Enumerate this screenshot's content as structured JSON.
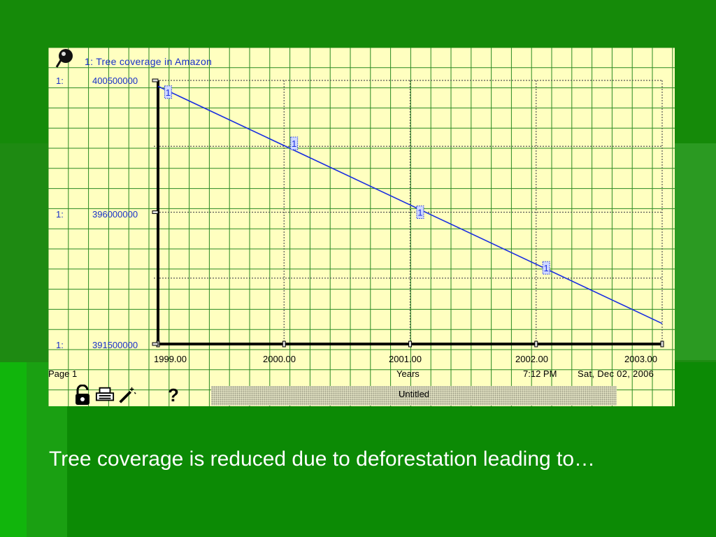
{
  "chart_data": {
    "type": "line",
    "title": "",
    "series": [
      {
        "index": "1",
        "name": "Tree coverage in Amazon",
        "label": "1: Tree coverage in Amazon",
        "color": "#1a2ee0",
        "x": [
          1999.0,
          2003.0
        ],
        "values": [
          400300000,
          392200000
        ],
        "markers": [
          {
            "x": 1999.08,
            "y": 400100000,
            "label": "1"
          },
          {
            "x": 2000.08,
            "y": 398350000,
            "label": "1"
          },
          {
            "x": 2001.08,
            "y": 396000000,
            "label": "1"
          },
          {
            "x": 2002.08,
            "y": 394100000,
            "label": "1"
          }
        ]
      }
    ],
    "xlabel": "Years",
    "ylabel": "",
    "xlim": [
      1999.0,
      2003.0
    ],
    "ylim": [
      391500000,
      400500000
    ],
    "xticks": [
      "1999.00",
      "2000.00",
      "2001.00",
      "2002.00",
      "2003.00"
    ],
    "xtick_values": [
      1999.0,
      2000.0,
      2001.0,
      2002.0,
      2003.0
    ],
    "yticks": [
      {
        "index": "1:",
        "label": "400500000",
        "value": 400500000
      },
      {
        "index": "1:",
        "label": "396000000",
        "value": 396000000
      },
      {
        "index": "1:",
        "label": "391500000",
        "value": 391500000
      }
    ],
    "grid": true,
    "legend": "top-left"
  },
  "footer": {
    "page": "Page 1",
    "time": "7:12 PM",
    "date": "Sat, Dec 02, 2006",
    "status": "Untitled"
  },
  "toolbar": {
    "icons": [
      "lock-icon",
      "printer-icon",
      "magic-wand-icon",
      "help-icon"
    ],
    "help_label": "?"
  },
  "caption": "Tree coverage is reduced due to deforestation leading to…",
  "colors": {
    "panel_bg": "#ffffc0",
    "grid": "#2a8a22",
    "series": "#1a2ee0",
    "axis": "#000000",
    "caption": "#ffffff"
  }
}
